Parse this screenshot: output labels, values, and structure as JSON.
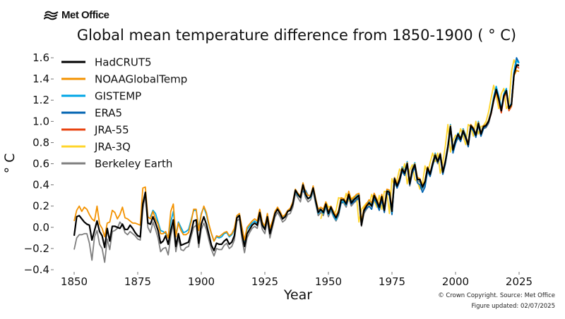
{
  "logo": {
    "icon": "met-office-waves-icon",
    "text": "Met Office"
  },
  "credits": {
    "copyright": "© Crown Copyright. Source: Met Office",
    "updated": "Figure updated: 02/07/2025"
  },
  "chart_data": {
    "type": "line",
    "title": "Global mean temperature difference from 1850-1900 (°C)",
    "title_display": "Global mean temperature difference from 1850-1900 ( ° C)",
    "xlabel": "Year",
    "ylabel": "° C",
    "xlim": [
      1845,
      2030
    ],
    "ylim": [
      -0.4,
      1.6
    ],
    "xticks": [
      1850,
      1875,
      1900,
      1925,
      1950,
      1975,
      2000,
      2025
    ],
    "yticks": [
      -0.4,
      -0.2,
      0.0,
      0.2,
      0.4,
      0.6,
      0.8,
      1.0,
      1.2,
      1.4,
      1.6
    ],
    "ytick_labels": [
      "−0.4",
      "−0.2",
      "0.0",
      "0.2",
      "0.4",
      "0.6",
      "0.8",
      "1.0",
      "1.2",
      "1.4",
      "1.6"
    ],
    "grid": false,
    "legend_position": "top-left",
    "series": [
      {
        "name": "HadCRUT5",
        "color": "#000000",
        "start": 1850,
        "values": [
          -0.08,
          0.1,
          0.11,
          0.08,
          0.05,
          0.03,
          0.02,
          -0.12,
          -0.03,
          0.06,
          -0.04,
          -0.08,
          -0.19,
          -0.01,
          -0.13,
          0.01,
          0.01,
          0.0,
          -0.01,
          0.03,
          -0.02,
          -0.02,
          0.02,
          -0.01,
          -0.05,
          -0.08,
          -0.09,
          0.22,
          0.33,
          0.04,
          0.03,
          0.1,
          0.04,
          -0.03,
          -0.15,
          -0.13,
          -0.08,
          -0.16,
          -0.03,
          0.07,
          -0.18,
          -0.06,
          -0.17,
          -0.16,
          -0.15,
          -0.14,
          -0.05,
          0.06,
          0.07,
          -0.15,
          0.03,
          0.1,
          0.03,
          -0.07,
          -0.17,
          -0.22,
          -0.15,
          -0.16,
          -0.16,
          -0.13,
          -0.11,
          -0.16,
          -0.14,
          -0.08,
          0.09,
          0.11,
          -0.06,
          -0.18,
          -0.06,
          -0.02,
          0.02,
          0.04,
          0.02,
          0.14,
          0.02,
          -0.02,
          0.1,
          -0.06,
          0.03,
          0.13,
          0.17,
          0.13,
          0.08,
          0.1,
          0.15,
          0.16,
          0.22,
          0.35,
          0.31,
          0.28,
          0.4,
          0.31,
          0.27,
          0.29,
          0.37,
          0.25,
          0.14,
          0.17,
          0.14,
          0.22,
          0.13,
          0.19,
          0.13,
          0.09,
          0.14,
          0.26,
          0.26,
          0.22,
          0.31,
          0.23,
          0.26,
          0.28,
          0.3,
          0.02,
          0.16,
          0.2,
          0.23,
          0.2,
          0.3,
          0.25,
          0.19,
          0.29,
          0.16,
          0.34,
          0.33,
          0.15,
          0.46,
          0.39,
          0.45,
          0.55,
          0.51,
          0.6,
          0.41,
          0.54,
          0.59,
          0.45,
          0.45,
          0.38,
          0.43,
          0.56,
          0.5,
          0.6,
          0.68,
          0.62,
          0.69,
          0.52,
          0.62,
          0.76,
          0.95,
          0.73,
          0.82,
          0.88,
          0.83,
          0.91,
          0.85,
          0.78,
          0.96,
          0.93,
          0.87,
          0.98,
          0.88,
          0.95,
          0.96,
          1.0,
          1.08,
          1.2,
          1.3,
          1.21,
          1.1,
          1.24,
          1.29,
          1.12,
          1.16,
          1.44,
          1.53,
          1.53
        ]
      },
      {
        "name": "NOAAGlobalTemp",
        "color": "#f39200",
        "start": 1850,
        "values": [
          0.06,
          0.16,
          0.2,
          0.15,
          0.19,
          0.17,
          0.12,
          0.08,
          0.06,
          0.2,
          0.03,
          -0.01,
          -0.09,
          0.04,
          0.05,
          0.16,
          0.14,
          0.08,
          0.12,
          0.19,
          0.09,
          0.08,
          0.06,
          0.04,
          0.04,
          0.03,
          0.02,
          0.37,
          0.38,
          0.1,
          0.08,
          0.15,
          0.08,
          0.03,
          -0.06,
          -0.06,
          -0.04,
          -0.1,
          0.15,
          0.22,
          -0.09,
          0.04,
          -0.03,
          -0.07,
          -0.07,
          -0.05,
          0.05,
          0.17,
          0.17,
          -0.03,
          0.12,
          0.2,
          0.14,
          0.03,
          -0.06,
          -0.13,
          -0.08,
          -0.09,
          -0.07,
          -0.05,
          -0.04,
          -0.08,
          -0.06,
          -0.01,
          0.11,
          0.13,
          0.0,
          -0.12,
          0.0,
          0.03,
          0.06,
          0.08,
          0.06,
          0.17,
          0.05,
          0.01,
          0.13,
          -0.01,
          0.06,
          0.15,
          0.19,
          0.15,
          0.1,
          0.12,
          0.16,
          0.18,
          0.24,
          0.36,
          0.32,
          0.3,
          0.42,
          0.33,
          0.3,
          0.3,
          0.39,
          0.27,
          0.17,
          0.19,
          0.17,
          0.24,
          0.15,
          0.2,
          0.15,
          0.11,
          0.16,
          0.28,
          0.27,
          0.24,
          0.34,
          0.26,
          0.28,
          0.31,
          0.32,
          0.06,
          0.18,
          0.22,
          0.26,
          0.23,
          0.32,
          0.27,
          0.21,
          0.31,
          0.19,
          0.36,
          0.35,
          0.18,
          0.47,
          0.41,
          0.47,
          0.56,
          0.52,
          0.61,
          0.43,
          0.55,
          0.6,
          0.47,
          0.46,
          0.39,
          0.44,
          0.57,
          0.51,
          0.61,
          0.69,
          0.63,
          0.7,
          0.54,
          0.63,
          0.77,
          0.96,
          0.74,
          0.82,
          0.88,
          0.84,
          0.92,
          0.86,
          0.8,
          0.97,
          0.94,
          0.88,
          0.99,
          0.89,
          0.96,
          0.97,
          1.01,
          1.09,
          1.21,
          1.29,
          1.2,
          1.1,
          1.23,
          1.28,
          1.11,
          1.15,
          1.43,
          1.48,
          1.47
        ]
      },
      {
        "name": "GISTEMP",
        "color": "#00a6e6",
        "start": 1880,
        "values": [
          0.1,
          0.16,
          0.13,
          0.05,
          -0.03,
          -0.04,
          -0.06,
          -0.09,
          0.05,
          0.15,
          -0.07,
          0.05,
          0.0,
          -0.05,
          -0.04,
          -0.02,
          0.07,
          0.16,
          0.16,
          -0.01,
          0.13,
          0.19,
          0.12,
          0.02,
          -0.06,
          -0.13,
          -0.09,
          -0.1,
          -0.09,
          -0.06,
          -0.05,
          -0.09,
          -0.07,
          -0.02,
          0.1,
          0.12,
          -0.03,
          -0.13,
          -0.02,
          0.01,
          0.04,
          0.06,
          0.04,
          0.16,
          0.04,
          0.0,
          0.12,
          -0.02,
          0.04,
          0.14,
          0.18,
          0.14,
          0.08,
          0.11,
          0.15,
          0.17,
          0.23,
          0.34,
          0.3,
          0.28,
          0.41,
          0.3,
          0.27,
          0.28,
          0.36,
          0.24,
          0.13,
          0.16,
          0.13,
          0.2,
          0.12,
          0.18,
          0.11,
          0.07,
          0.13,
          0.25,
          0.24,
          0.21,
          0.32,
          0.24,
          0.27,
          0.29,
          0.31,
          0.05,
          0.17,
          0.21,
          0.24,
          0.21,
          0.31,
          0.26,
          0.2,
          0.3,
          0.17,
          0.35,
          0.34,
          0.14,
          0.47,
          0.4,
          0.46,
          0.57,
          0.53,
          0.62,
          0.42,
          0.55,
          0.61,
          0.46,
          0.44,
          0.37,
          0.42,
          0.57,
          0.51,
          0.61,
          0.7,
          0.63,
          0.7,
          0.53,
          0.63,
          0.78,
          0.97,
          0.74,
          0.83,
          0.89,
          0.84,
          0.93,
          0.87,
          0.79,
          0.97,
          0.94,
          0.88,
          1.0,
          0.89,
          0.96,
          0.97,
          1.01,
          1.1,
          1.23,
          1.33,
          1.24,
          1.12,
          1.26,
          1.31,
          1.13,
          1.17,
          1.47,
          1.57,
          1.55
        ]
      },
      {
        "name": "ERA5",
        "color": "#0063b1",
        "start": 1940,
        "values": [
          0.33,
          0.35,
          0.3,
          0.3,
          0.38,
          0.25,
          0.17,
          0.17,
          0.13,
          0.21,
          0.12,
          0.18,
          0.12,
          0.08,
          0.13,
          0.23,
          0.24,
          0.21,
          0.29,
          0.22,
          0.24,
          0.26,
          0.28,
          0.04,
          0.15,
          0.18,
          0.2,
          0.17,
          0.27,
          0.22,
          0.16,
          0.26,
          0.14,
          0.33,
          0.3,
          0.12,
          0.43,
          0.37,
          0.43,
          0.53,
          0.49,
          0.59,
          0.4,
          0.51,
          0.57,
          0.42,
          0.4,
          0.33,
          0.38,
          0.53,
          0.48,
          0.58,
          0.67,
          0.61,
          0.67,
          0.5,
          0.6,
          0.75,
          0.93,
          0.7,
          0.79,
          0.85,
          0.81,
          0.9,
          0.84,
          0.76,
          0.94,
          0.91,
          0.85,
          0.97,
          0.86,
          0.93,
          0.95,
          0.99,
          1.08,
          1.22,
          1.32,
          1.23,
          1.11,
          1.25,
          1.3,
          1.13,
          1.17,
          1.47,
          1.6,
          1.55
        ]
      },
      {
        "name": "JRA-55",
        "color": "#e8420f",
        "start": 1958,
        "values": [
          0.28,
          0.25,
          0.27,
          0.29,
          0.31,
          0.05,
          0.17,
          0.21,
          0.24,
          0.21,
          0.32,
          0.26,
          0.2,
          0.3,
          0.17,
          0.35,
          0.34,
          0.16,
          0.46,
          0.41,
          0.46,
          0.56,
          0.52,
          0.61,
          0.43,
          0.55,
          0.6,
          0.46,
          0.44,
          0.38,
          0.43,
          0.57,
          0.51,
          0.61,
          0.69,
          0.62,
          0.69,
          0.52,
          0.62,
          0.76,
          0.95,
          0.72,
          0.81,
          0.87,
          0.82,
          0.91,
          0.84,
          0.77,
          0.95,
          0.92,
          0.86,
          0.98,
          0.87,
          0.94,
          0.95,
          0.99,
          1.07,
          1.19,
          1.28,
          1.19,
          1.08,
          1.22,
          1.27,
          1.1,
          1.14,
          1.43,
          1.52,
          1.5
        ]
      },
      {
        "name": "JRA-3Q",
        "color": "#ffd52b",
        "start": 1947,
        "values": [
          0.08,
          0.17,
          0.24,
          0.19,
          0.2,
          0.11,
          0.16,
          0.28,
          0.27,
          0.23,
          0.32,
          0.25,
          0.27,
          0.29,
          0.3,
          0.05,
          0.17,
          0.2,
          0.23,
          0.2,
          0.31,
          0.25,
          0.19,
          0.3,
          0.17,
          0.34,
          0.33,
          0.13,
          0.46,
          0.39,
          0.45,
          0.55,
          0.51,
          0.6,
          0.41,
          0.54,
          0.59,
          0.45,
          0.43,
          0.36,
          0.41,
          0.58,
          0.51,
          0.61,
          0.7,
          0.62,
          0.7,
          0.51,
          0.61,
          0.77,
          0.97,
          0.71,
          0.82,
          0.87,
          0.83,
          0.93,
          0.86,
          0.78,
          0.97,
          0.95,
          0.86,
          1.0,
          0.88,
          0.95,
          0.96,
          1.0,
          1.09,
          1.22,
          1.34,
          1.24,
          1.12,
          1.26,
          1.31,
          1.12,
          1.16,
          1.47,
          1.58,
          1.52
        ]
      },
      {
        "name": "Berkeley Earth",
        "color": "#7f7f7f",
        "start": 1850,
        "values": [
          -0.21,
          -0.1,
          -0.07,
          -0.07,
          -0.06,
          -0.06,
          -0.15,
          -0.31,
          -0.09,
          -0.03,
          -0.16,
          -0.2,
          -0.33,
          -0.11,
          -0.21,
          -0.04,
          -0.03,
          -0.01,
          0.05,
          0.02,
          -0.05,
          -0.07,
          -0.04,
          -0.06,
          -0.08,
          -0.11,
          -0.12,
          0.17,
          0.31,
          0.0,
          -0.05,
          0.05,
          -0.02,
          -0.1,
          -0.23,
          -0.2,
          -0.19,
          -0.26,
          -0.08,
          0.03,
          -0.23,
          -0.1,
          -0.21,
          -0.22,
          -0.19,
          -0.18,
          -0.09,
          0.0,
          0.02,
          -0.19,
          -0.02,
          0.04,
          -0.02,
          -0.12,
          -0.21,
          -0.27,
          -0.2,
          -0.21,
          -0.21,
          -0.17,
          -0.15,
          -0.2,
          -0.18,
          -0.12,
          0.06,
          0.08,
          -0.11,
          -0.24,
          -0.1,
          -0.05,
          -0.01,
          0.01,
          -0.01,
          0.1,
          -0.02,
          -0.06,
          0.07,
          -0.1,
          0.0,
          0.1,
          0.14,
          0.1,
          0.05,
          0.07,
          0.12,
          0.13,
          0.19,
          0.32,
          0.28,
          0.24,
          0.37,
          0.28,
          0.24,
          0.26,
          0.34,
          0.22,
          0.11,
          0.14,
          0.11,
          0.19,
          0.1,
          0.16,
          0.1,
          0.06,
          0.11,
          0.23,
          0.23,
          0.19,
          0.28,
          0.2,
          0.23,
          0.25,
          0.27,
          0.01,
          0.13,
          0.17,
          0.2,
          0.17,
          0.27,
          0.22,
          0.16,
          0.26,
          0.14,
          0.32,
          0.31,
          0.13,
          0.44,
          0.37,
          0.43,
          0.53,
          0.49,
          0.58,
          0.39,
          0.52,
          0.57,
          0.43,
          0.43,
          0.36,
          0.41,
          0.54,
          0.48,
          0.58,
          0.66,
          0.6,
          0.67,
          0.5,
          0.6,
          0.74,
          0.93,
          0.71,
          0.8,
          0.86,
          0.81,
          0.9,
          0.83,
          0.76,
          0.94,
          0.91,
          0.85,
          0.96,
          0.86,
          0.93,
          0.94,
          0.98,
          1.07,
          1.19,
          1.29,
          1.2,
          1.09,
          1.23,
          1.28,
          1.11,
          1.15,
          1.44,
          1.54,
          1.52
        ]
      }
    ]
  }
}
